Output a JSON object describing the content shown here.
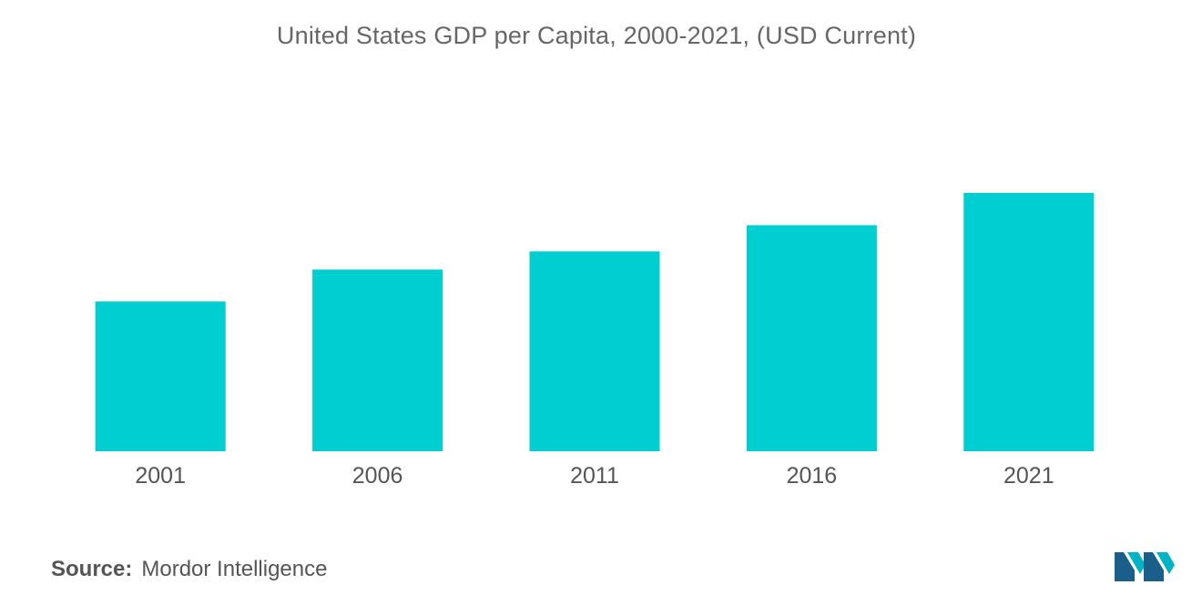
{
  "chart_data": {
    "type": "bar",
    "title": "United States GDP per Capita, 2000-2021, (USD Current)",
    "categories": [
      "2001",
      "2006",
      "2011",
      "2016",
      "2021"
    ],
    "values": [
      37100,
      45000,
      49500,
      56000,
      64000
    ],
    "xlabel": "",
    "ylabel": "",
    "ylim": [
      0,
      80000
    ],
    "grid": false,
    "legend": "none",
    "colors": {
      "bar": "#00CED1"
    }
  },
  "source": {
    "label": "Source:",
    "text": "Mordor Intelligence"
  },
  "logo": {
    "icon": "mordor-intelligence-logo",
    "colors": [
      "#1a5e8a",
      "#00b3c6"
    ]
  }
}
